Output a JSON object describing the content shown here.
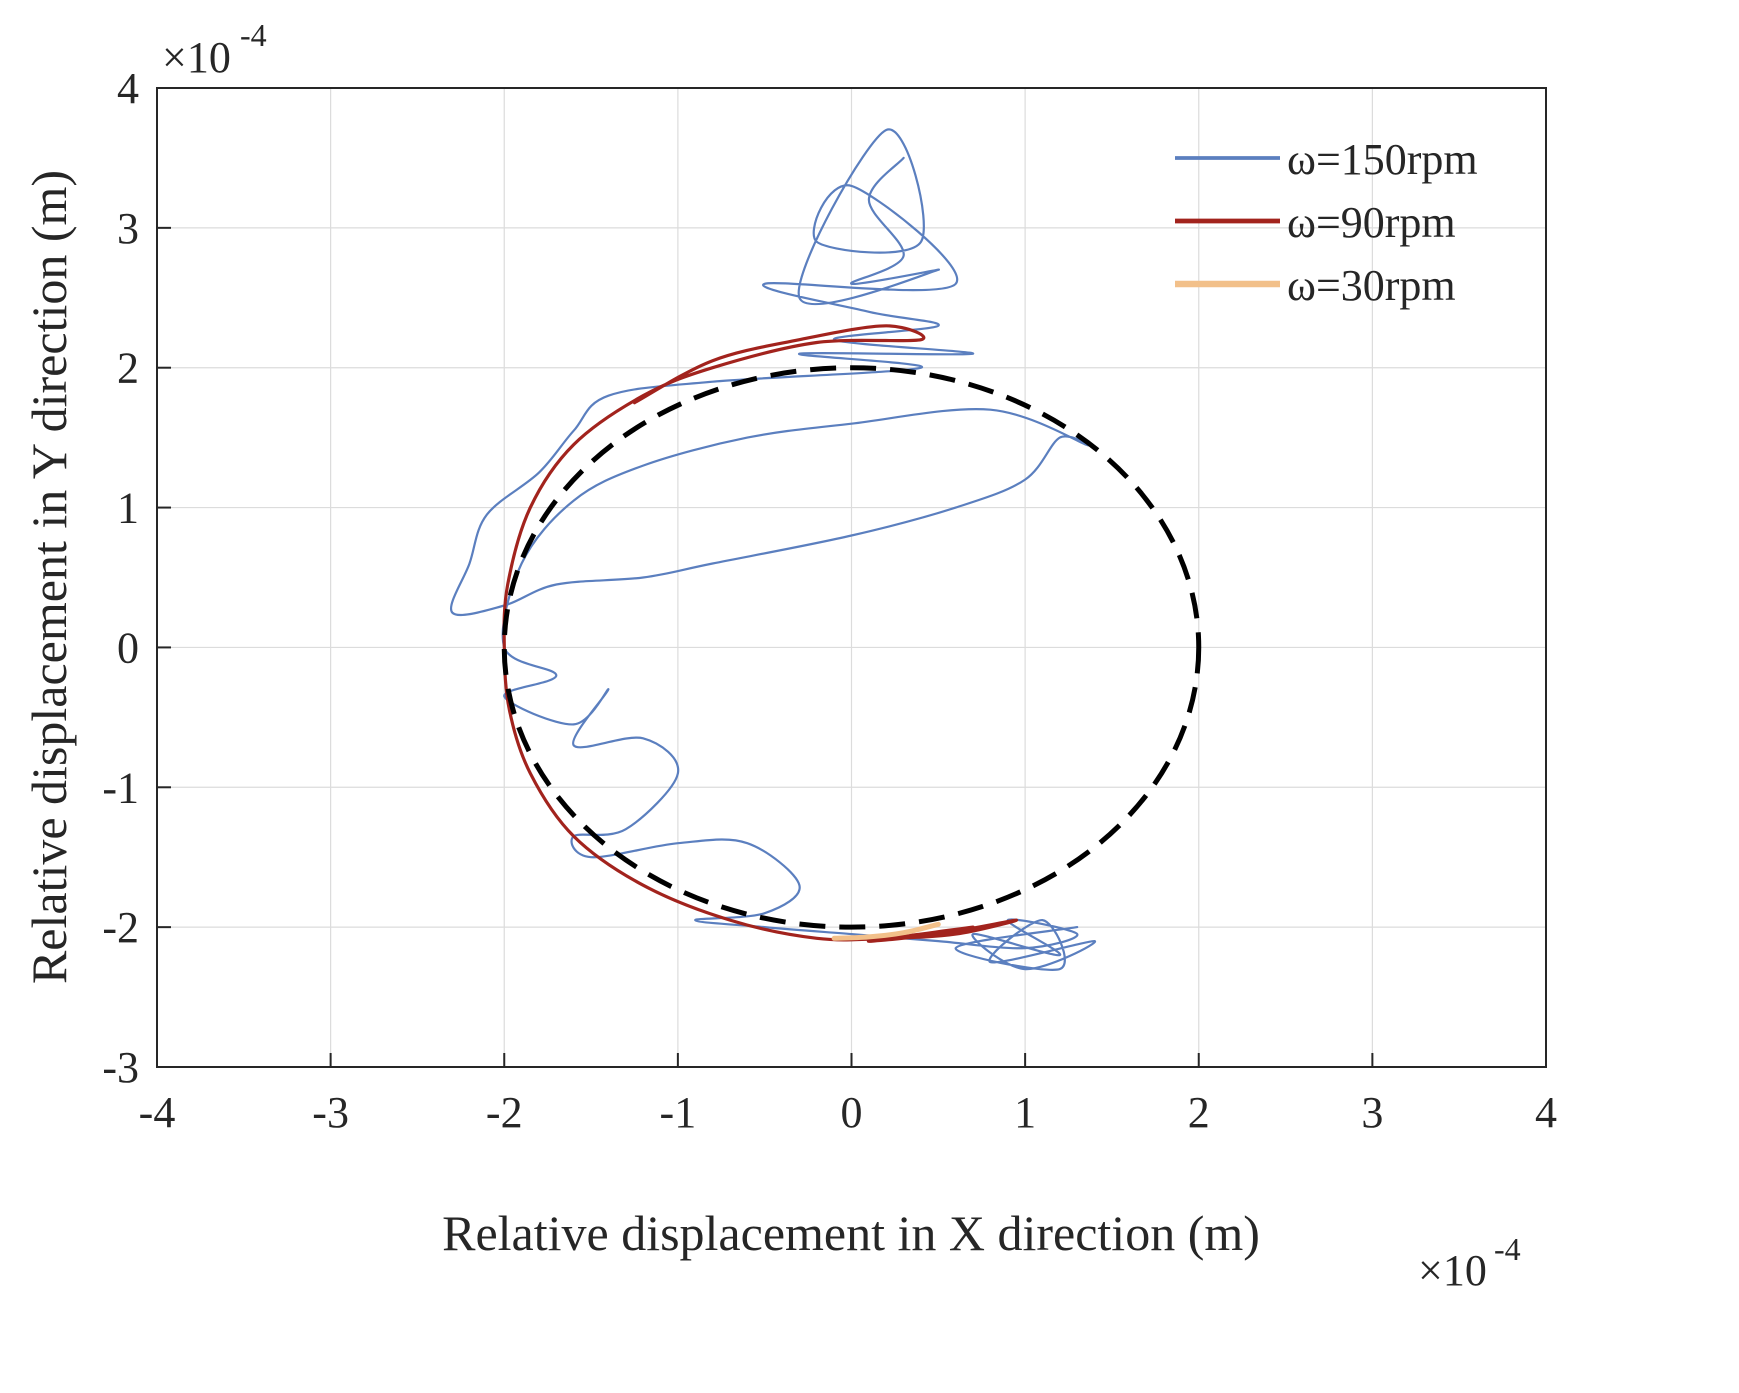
{
  "chart_data": {
    "type": "line",
    "title": "",
    "xlabel": "Relative displacement in X direction (m)",
    "ylabel": "Relative displacement in Y direction (m)",
    "x_multiplier": "×10",
    "x_multiplier_exp": "-4",
    "y_multiplier": "×10",
    "y_multiplier_exp": "-4",
    "xlim": [
      -4,
      4
    ],
    "ylim": [
      -3,
      4
    ],
    "xticks": [
      -4,
      -3,
      -2,
      -1,
      0,
      1,
      2,
      3,
      4
    ],
    "yticks": [
      -3,
      -2,
      -1,
      0,
      1,
      2,
      3,
      4
    ],
    "xtick_labels": [
      "-4",
      "-3",
      "-2",
      "-1",
      "0",
      "1",
      "2",
      "3",
      "4"
    ],
    "ytick_labels": [
      "-3",
      "-2",
      "-1",
      "0",
      "1",
      "2",
      "3",
      "4"
    ],
    "grid": true,
    "legend_position": "top-right",
    "reference_circle": {
      "center": [
        0,
        0
      ],
      "radius": 2,
      "style": "dashed",
      "color": "#000000"
    },
    "series": [
      {
        "name": "ω=150rpm",
        "color": "#5b7fbf",
        "points": [
          [
            0.3,
            3.5
          ],
          [
            0.1,
            3.2
          ],
          [
            0.3,
            2.8
          ],
          [
            0.0,
            2.6
          ],
          [
            0.5,
            2.7
          ],
          [
            -0.3,
            2.5
          ],
          [
            0.2,
            3.7
          ],
          [
            0.4,
            2.9
          ],
          [
            -0.2,
            2.9
          ],
          [
            0.0,
            3.3
          ],
          [
            0.6,
            2.6
          ],
          [
            -0.5,
            2.6
          ],
          [
            0.1,
            2.4
          ],
          [
            0.5,
            2.3
          ],
          [
            -0.1,
            2.2
          ],
          [
            0.7,
            2.1
          ],
          [
            -0.3,
            2.1
          ],
          [
            0.4,
            2.0
          ],
          [
            -0.8,
            1.9
          ],
          [
            -1.4,
            1.8
          ],
          [
            -1.6,
            1.55
          ],
          [
            -1.8,
            1.25
          ],
          [
            -2.1,
            0.95
          ],
          [
            -2.2,
            0.6
          ],
          [
            -2.3,
            0.25
          ],
          [
            -2.0,
            0.3
          ],
          [
            -1.7,
            0.45
          ],
          [
            -1.2,
            0.5
          ],
          [
            -0.8,
            0.6
          ],
          [
            0.0,
            0.8
          ],
          [
            0.6,
            1.0
          ],
          [
            1.0,
            1.2
          ],
          [
            1.2,
            1.5
          ],
          [
            1.35,
            1.45
          ],
          [
            0.8,
            1.7
          ],
          [
            0.0,
            1.6
          ],
          [
            -0.6,
            1.5
          ],
          [
            -1.2,
            1.3
          ],
          [
            -1.6,
            1.05
          ],
          [
            -1.9,
            0.6
          ],
          [
            -2.0,
            0.0
          ],
          [
            -1.7,
            -0.2
          ],
          [
            -2.0,
            -0.35
          ],
          [
            -1.6,
            -0.55
          ],
          [
            -1.4,
            -0.3
          ],
          [
            -1.6,
            -0.7
          ],
          [
            -1.2,
            -0.65
          ],
          [
            -1.0,
            -0.9
          ],
          [
            -1.3,
            -1.3
          ],
          [
            -1.6,
            -1.35
          ],
          [
            -1.5,
            -1.5
          ],
          [
            -1.0,
            -1.4
          ],
          [
            -0.6,
            -1.4
          ],
          [
            -0.3,
            -1.7
          ],
          [
            -0.5,
            -1.9
          ],
          [
            -0.9,
            -1.95
          ],
          [
            -0.5,
            -2.0
          ],
          [
            0.0,
            -2.05
          ],
          [
            0.5,
            -2.1
          ],
          [
            1.0,
            -2.15
          ],
          [
            1.3,
            -2.05
          ],
          [
            0.9,
            -1.95
          ],
          [
            1.2,
            -2.2
          ],
          [
            0.7,
            -2.05
          ],
          [
            1.0,
            -2.3
          ],
          [
            1.4,
            -2.1
          ],
          [
            0.8,
            -2.25
          ],
          [
            1.1,
            -1.95
          ],
          [
            1.2,
            -2.3
          ],
          [
            0.6,
            -2.15
          ],
          [
            1.3,
            -2.0
          ]
        ]
      },
      {
        "name": "ω=90rpm",
        "color": "#a2231d",
        "points": [
          [
            -1.25,
            1.75
          ],
          [
            -0.8,
            2.05
          ],
          [
            -0.3,
            2.2
          ],
          [
            0.2,
            2.3
          ],
          [
            0.4,
            2.2
          ],
          [
            -0.2,
            2.18
          ],
          [
            -0.8,
            2.0
          ],
          [
            -1.2,
            1.8
          ],
          [
            -1.6,
            1.45
          ],
          [
            -1.85,
            1.0
          ],
          [
            -1.98,
            0.45
          ],
          [
            -2.0,
            0.0
          ],
          [
            -1.97,
            -0.45
          ],
          [
            -1.85,
            -0.9
          ],
          [
            -1.6,
            -1.35
          ],
          [
            -1.2,
            -1.7
          ],
          [
            -0.7,
            -1.95
          ],
          [
            -0.2,
            -2.08
          ],
          [
            0.2,
            -2.08
          ],
          [
            0.6,
            -2.05
          ],
          [
            0.95,
            -1.95
          ],
          [
            0.5,
            -2.05
          ],
          [
            0.1,
            -2.1
          ],
          [
            0.7,
            -2.0
          ]
        ]
      },
      {
        "name": "ω=30rpm",
        "color": "#f2c08a",
        "points": [
          [
            -0.1,
            -2.08
          ],
          [
            0.1,
            -2.07
          ],
          [
            0.3,
            -2.04
          ],
          [
            0.5,
            -1.98
          ]
        ]
      }
    ]
  }
}
